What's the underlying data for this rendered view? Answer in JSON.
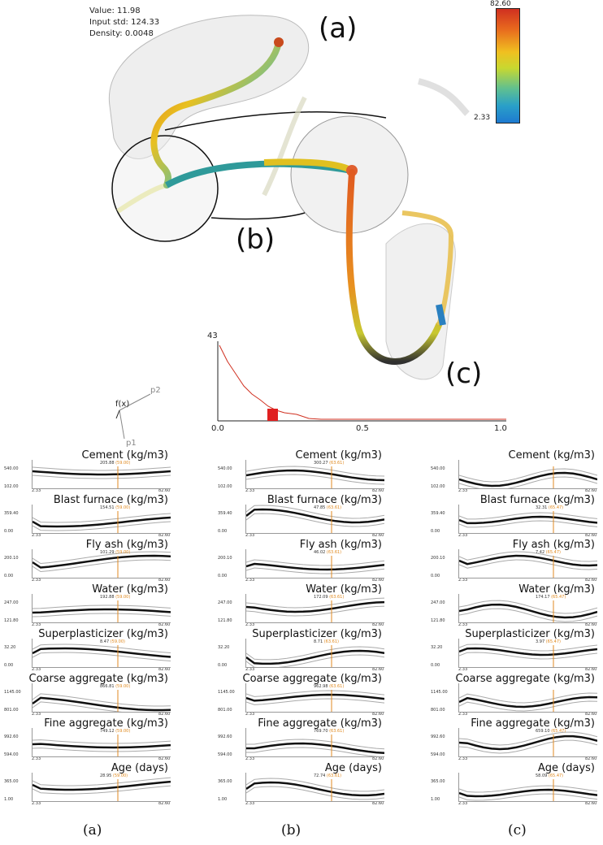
{
  "view3d": {
    "info": {
      "value_line": "Value: 11.98",
      "std_line": "Input std: 124.33",
      "density_line": "Density: 0.0048"
    },
    "colorbar": {
      "max": "82.60",
      "min": "2.33"
    },
    "labels": {
      "a": "(a)",
      "b": "(b)",
      "c": "(c)"
    },
    "axis_labels": {
      "fx": "f(x)",
      "p1": "p1",
      "p2": "p2"
    },
    "histogram": {
      "ymax": "43",
      "x0": "0.0",
      "x05": "0.5",
      "x1": "1.0"
    }
  },
  "panel_axis": {
    "xmin": "2.33",
    "xmax": "82.60"
  },
  "variables": [
    {
      "title": "Cement (kg/m3)",
      "ymax": "540.00",
      "ymin": "102.00"
    },
    {
      "title": "Blast furnace (kg/m3)",
      "ymax": "359.40",
      "ymin": "0.00"
    },
    {
      "title": "Fly ash (kg/m3)",
      "ymax": "200.10",
      "ymin": "0.00"
    },
    {
      "title": "Water (kg/m3)",
      "ymax": "247.00",
      "ymin": "121.80"
    },
    {
      "title": "Superplasticizer (kg/m3)",
      "ymax": "32.20",
      "ymin": "0.00"
    },
    {
      "title": "Coarse aggregate (kg/m3)",
      "ymax": "1145.00",
      "ymin": "801.00"
    },
    {
      "title": "Fine aggregate (kg/m3)",
      "ymax": "992.60",
      "ymin": "594.00"
    },
    {
      "title": "Age (days)",
      "ymax": "365.00",
      "ymin": "1.00"
    }
  ],
  "columns": [
    {
      "caption": "(a)",
      "output": "(59.00)",
      "values": [
        "205.88",
        "154.51",
        "101.29",
        "192.88",
        "8.47",
        "866.81",
        "749.12",
        "28.95"
      ]
    },
    {
      "caption": "(b)",
      "output": "(63.61)",
      "values": [
        "300.27",
        "47.85",
        "46.02",
        "172.09",
        "8.71",
        "962.98",
        "769.70",
        "72.74"
      ]
    },
    {
      "caption": "(c)",
      "output": "(65.47)",
      "values": [
        "",
        "32.31",
        "7.42",
        "174.17",
        "3.97",
        "",
        "659.10",
        "58.09"
      ]
    }
  ]
}
